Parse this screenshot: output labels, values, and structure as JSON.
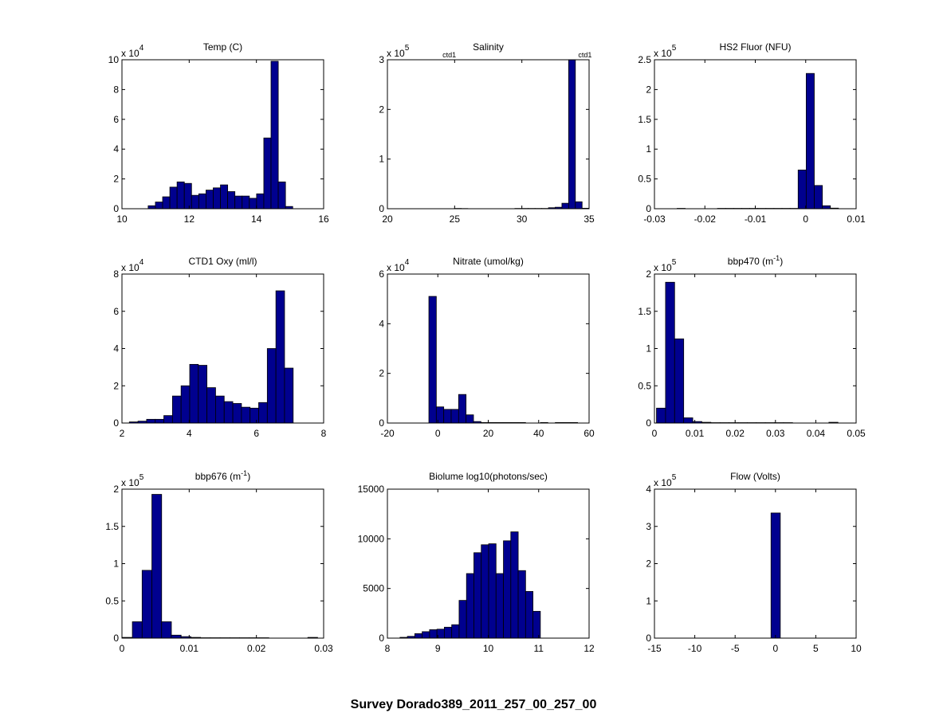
{
  "figure_title": "Survey Dorado389_2011_257_00_257_00",
  "colors": {
    "bar_fill": "#00008f",
    "bar_edge": "#000000",
    "axes": "#000000"
  },
  "chart_data": [
    {
      "type": "bar",
      "title": "Temp (C)",
      "title_sup": "",
      "title_tail": "",
      "scale_label": "x 10",
      "scale_exp": "4",
      "xlim": [
        10,
        16
      ],
      "ylim": [
        0,
        10
      ],
      "xticks": [
        "10",
        "12",
        "14",
        "16"
      ],
      "xtick_values": [
        10,
        12,
        14,
        16
      ],
      "yticks": [
        "0",
        "2",
        "4",
        "6",
        "8",
        "10"
      ],
      "ytick_values": [
        0,
        2,
        4,
        6,
        8,
        10
      ],
      "bin_edges_start": 10.78,
      "bin_width": 0.215,
      "values": [
        0.2,
        0.45,
        0.8,
        1.45,
        1.8,
        1.7,
        0.9,
        1.0,
        1.25,
        1.4,
        1.6,
        1.15,
        0.85,
        0.85,
        0.7,
        1.0,
        4.75,
        9.9,
        1.8,
        0.15
      ],
      "annotations": []
    },
    {
      "type": "bar",
      "title": "Salinity",
      "title_sup": "",
      "title_tail": "",
      "scale_label": "x 10",
      "scale_exp": "5",
      "xlim": [
        20,
        35
      ],
      "ylim": [
        0,
        3
      ],
      "xticks": [
        "20",
        "25",
        "30",
        "35"
      ],
      "xtick_values": [
        20,
        25,
        30,
        35
      ],
      "yticks": [
        "0",
        "1",
        "2",
        "3"
      ],
      "ytick_values": [
        0,
        1,
        2,
        3
      ],
      "bin_edges_start": 24.48,
      "bin_width": 0.5,
      "values": [
        0,
        0.006,
        0.004,
        0,
        0,
        0,
        0,
        0,
        0,
        0,
        0.006,
        0.006,
        0.006,
        0.006,
        0.006,
        0.02,
        0.03,
        0.11,
        3.0,
        0.14,
        0.01
      ],
      "annotations": [
        {
          "text": "ctd1",
          "x": 24.6
        },
        {
          "text": "ctd1",
          "x": 34.7
        }
      ]
    },
    {
      "type": "bar",
      "title": "HS2 Fluor (NFU)",
      "title_sup": "",
      "title_tail": "",
      "scale_label": "x 10",
      "scale_exp": "5",
      "xlim": [
        -0.03,
        0.01
      ],
      "ylim": [
        0,
        2.5
      ],
      "xticks": [
        "-0.03",
        "-0.02",
        "-0.01",
        "0",
        "0.01"
      ],
      "xtick_values": [
        -0.03,
        -0.02,
        -0.01,
        0,
        0.01
      ],
      "yticks": [
        "0",
        "0.5",
        "1",
        "1.5",
        "2",
        "2.5"
      ],
      "ytick_values": [
        0,
        0.5,
        1,
        1.5,
        2,
        2.5
      ],
      "bin_edges_start": -0.0255,
      "bin_width": 0.0016,
      "values": [
        0.006,
        0,
        0,
        0,
        0,
        0.006,
        0.006,
        0.006,
        0.006,
        0.006,
        0.006,
        0.006,
        0.006,
        0.006,
        0.006,
        0.65,
        2.27,
        0.39,
        0.05,
        0.01
      ],
      "annotations": []
    },
    {
      "type": "bar",
      "title": "CTD1 Oxy (ml/l)",
      "title_sup": "",
      "title_tail": "",
      "scale_label": "x 10",
      "scale_exp": "4",
      "xlim": [
        2,
        8
      ],
      "ylim": [
        0,
        8
      ],
      "xticks": [
        "2",
        "4",
        "6",
        "8"
      ],
      "xtick_values": [
        2,
        4,
        6,
        8
      ],
      "yticks": [
        "0",
        "2",
        "4",
        "6",
        "8"
      ],
      "ytick_values": [
        0,
        2,
        4,
        6,
        8
      ],
      "bin_edges_start": 2.22,
      "bin_width": 0.2565,
      "values": [
        0.06,
        0.1,
        0.2,
        0.2,
        0.4,
        1.45,
        2.0,
        3.15,
        3.1,
        1.9,
        1.45,
        1.15,
        1.05,
        0.85,
        0.8,
        1.1,
        4.0,
        7.1,
        2.95
      ],
      "annotations": []
    },
    {
      "type": "bar",
      "title": "Nitrate (umol/kg)",
      "title_sup": "",
      "title_tail": "",
      "scale_label": "x 10",
      "scale_exp": "4",
      "xlim": [
        -20,
        60
      ],
      "ylim": [
        0,
        6
      ],
      "xticks": [
        "-20",
        "0",
        "20",
        "40",
        "60"
      ],
      "xtick_values": [
        -20,
        0,
        20,
        40,
        60
      ],
      "yticks": [
        "0",
        "2",
        "4",
        "6"
      ],
      "ytick_values": [
        0,
        2,
        4,
        6
      ],
      "bin_edges_start": -3.55,
      "bin_width": 2.95,
      "values": [
        5.1,
        0.65,
        0.55,
        0.55,
        1.15,
        0.33,
        0.06,
        0.02,
        0.02,
        0.02,
        0.02,
        0.02,
        0.02,
        0,
        0,
        0.02,
        0,
        0.02,
        0.02,
        0.02
      ],
      "annotations": []
    },
    {
      "type": "bar",
      "title": "bbp470 (m",
      "title_sup": "-1",
      "title_tail": ")",
      "scale_label": "x 10",
      "scale_exp": "5",
      "xlim": [
        0,
        0.05
      ],
      "ylim": [
        0,
        2
      ],
      "xticks": [
        "0",
        "0.01",
        "0.02",
        "0.03",
        "0.04",
        "0.05"
      ],
      "xtick_values": [
        0,
        0.01,
        0.02,
        0.03,
        0.04,
        0.05
      ],
      "yticks": [
        "0",
        "0.5",
        "1",
        "1.5",
        "2"
      ],
      "ytick_values": [
        0,
        0.5,
        1,
        1.5,
        2
      ],
      "bin_edges_start": 0.0005,
      "bin_width": 0.00225,
      "values": [
        0.2,
        1.89,
        1.13,
        0.07,
        0.02,
        0.01,
        0.005,
        0.005,
        0.005,
        0.005,
        0.005,
        0.005,
        0.005,
        0.005,
        0.005,
        0,
        0,
        0,
        0,
        0.01
      ],
      "annotations": []
    },
    {
      "type": "bar",
      "title": "bbp676 (m",
      "title_sup": "-1",
      "title_tail": ")",
      "scale_label": "x 10",
      "scale_exp": "5",
      "xlim": [
        0,
        0.03
      ],
      "ylim": [
        0,
        2
      ],
      "xticks": [
        "0",
        "0.01",
        "0.02",
        "0.03"
      ],
      "xtick_values": [
        0,
        0.01,
        0.02,
        0.03
      ],
      "yticks": [
        "0",
        "0.5",
        "1",
        "1.5",
        "2"
      ],
      "ytick_values": [
        0,
        0.5,
        1,
        1.5,
        2
      ],
      "bin_edges_start": 0.0001,
      "bin_width": 0.00145,
      "values": [
        0.01,
        0.22,
        0.91,
        1.93,
        0.22,
        0.04,
        0.02,
        0.01,
        0.005,
        0.005,
        0.005,
        0.005,
        0.005,
        0.005,
        0.005,
        0,
        0,
        0,
        0,
        0.01
      ],
      "annotations": []
    },
    {
      "type": "bar",
      "title": "Biolume log10(photons/sec)",
      "title_sup": "",
      "title_tail": "",
      "scale_label": "",
      "scale_exp": "",
      "xlim": [
        8,
        12
      ],
      "ylim": [
        0,
        15000
      ],
      "xticks": [
        "8",
        "9",
        "10",
        "11",
        "12"
      ],
      "xtick_values": [
        8,
        9,
        10,
        11,
        12
      ],
      "yticks": [
        "0",
        "5000",
        "10000",
        "15000"
      ],
      "ytick_values": [
        0,
        5000,
        10000,
        15000
      ],
      "bin_edges_start": 8.25,
      "bin_width": 0.1465,
      "values": [
        80,
        180,
        450,
        650,
        850,
        900,
        1100,
        1350,
        3800,
        6500,
        8600,
        9400,
        9500,
        6500,
        9800,
        10700,
        6800,
        4700,
        2700
      ],
      "annotations": []
    },
    {
      "type": "bar",
      "title": "Flow (Volts)",
      "title_sup": "",
      "title_tail": "",
      "scale_label": "x 10",
      "scale_exp": "5",
      "xlim": [
        -15,
        10
      ],
      "ylim": [
        0,
        4
      ],
      "xticks": [
        "-15",
        "-10",
        "-5",
        "0",
        "5",
        "10"
      ],
      "xtick_values": [
        -15,
        -10,
        -5,
        0,
        5,
        10
      ],
      "yticks": [
        "0",
        "1",
        "2",
        "3",
        "4"
      ],
      "ytick_values": [
        0,
        1,
        2,
        3,
        4
      ],
      "bin_edges_start": -0.55,
      "bin_width": 1.15,
      "values": [
        3.36
      ],
      "annotations": []
    }
  ]
}
